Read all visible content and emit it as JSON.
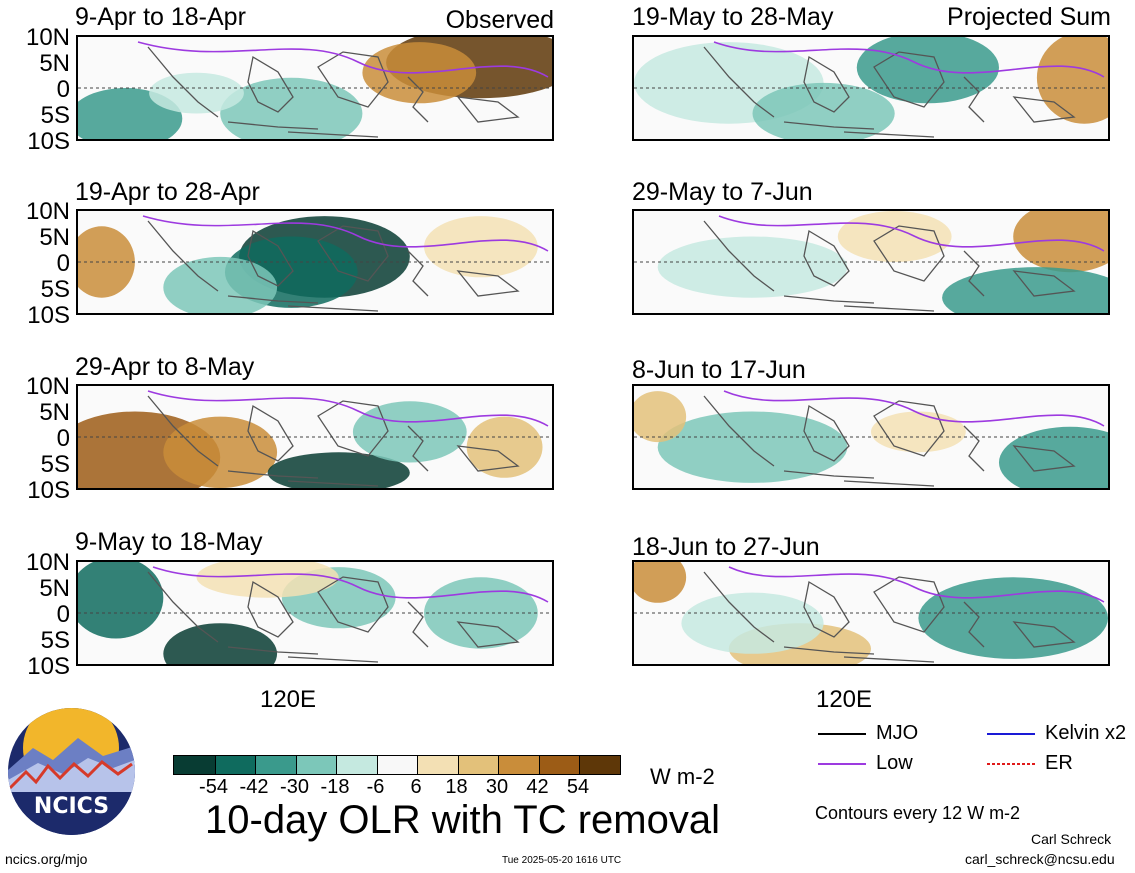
{
  "panel_tags": {
    "observed": "Observed",
    "projected": "Projected Sum"
  },
  "panels": [
    {
      "title": "9-Apr to 18-Apr"
    },
    {
      "title": "19-Apr to 28-Apr"
    },
    {
      "title": "29-Apr to 8-May"
    },
    {
      "title": "9-May to 18-May"
    },
    {
      "title": "19-May to 28-May"
    },
    {
      "title": "29-May to 7-Jun"
    },
    {
      "title": "8-Jun to 17-Jun"
    },
    {
      "title": "18-Jun to 27-Jun"
    }
  ],
  "y_ticks": [
    "10N",
    "5N",
    "0",
    "5S",
    "10S"
  ],
  "x_tick": "120E",
  "colorbar": {
    "labels": [
      "-54",
      "-42",
      "-30",
      "-18",
      "-6",
      "6",
      "18",
      "30",
      "42",
      "54"
    ],
    "colors": [
      "#083c33",
      "#0f6b5e",
      "#3a9a8c",
      "#7cc7b9",
      "#c5e9e0",
      "#f8f8f8",
      "#f3e0b4",
      "#e3c17a",
      "#c98d3a",
      "#9c5c16",
      "#5e3708"
    ],
    "units": "W m-2"
  },
  "main_title": "10-day OLR with TC removal",
  "legend": {
    "items": [
      {
        "label": "MJO",
        "color": "#000000",
        "dashed": false
      },
      {
        "label": "Kelvin x2",
        "color": "#1a1ad6",
        "dashed": false
      },
      {
        "label": "Low",
        "color": "#9d3ae0",
        "dashed": false
      },
      {
        "label": "ER",
        "color": "#e01a1a",
        "dashed": true
      }
    ],
    "note": "Contours every 12 W m-2"
  },
  "logo": {
    "text": "NCICS",
    "colors": {
      "navy": "#1c2a6b",
      "gold": "#f2b62b",
      "red": "#d63a2a"
    }
  },
  "footer": {
    "url": "ncics.org/mjo",
    "timestamp": "Tue 2025-05-20 1616 UTC",
    "author": "Carl Schreck",
    "email": "carl_schreck@ncsu.edu"
  }
}
